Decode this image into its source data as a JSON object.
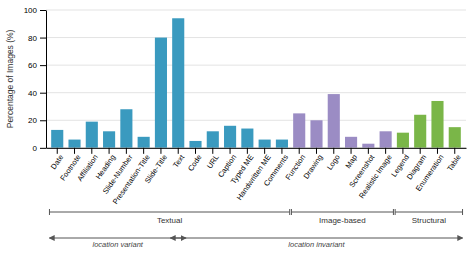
{
  "chart_data": {
    "type": "bar",
    "categories": [
      "Date",
      "Footnote",
      "Affiliation",
      "Heading",
      "Slide-Number",
      "Presentation-Title",
      "Slide-Title",
      "Text",
      "Code",
      "URL",
      "Caption",
      "Typed ME",
      "Handwritten ME",
      "Comments",
      "Function",
      "Drawing",
      "Logo",
      "Map",
      "Screenshot",
      "Realistic Image",
      "Legend",
      "Diagram",
      "Enumeration",
      "Table"
    ],
    "values": [
      13,
      6,
      19,
      12,
      28,
      8,
      80,
      94,
      5,
      12,
      16,
      14,
      6,
      6,
      25,
      20,
      39,
      8,
      3,
      12,
      11,
      24,
      34,
      15
    ],
    "colors": [
      "#3a9abf",
      "#3a9abf",
      "#3a9abf",
      "#3a9abf",
      "#3a9abf",
      "#3a9abf",
      "#3a9abf",
      "#3a9abf",
      "#3a9abf",
      "#3a9abf",
      "#3a9abf",
      "#3a9abf",
      "#3a9abf",
      "#3a9abf",
      "#9b8cc4",
      "#9b8cc4",
      "#9b8cc4",
      "#9b8cc4",
      "#9b8cc4",
      "#9b8cc4",
      "#7ab648",
      "#7ab648",
      "#7ab648",
      "#7ab648"
    ],
    "ylabel": "Percentage of Images (%)",
    "ylim": [
      0,
      100
    ],
    "yticks": [
      0,
      20,
      40,
      60,
      80,
      100
    ],
    "grid": true,
    "groups": [
      {
        "label": "Textual",
        "from": "Date",
        "to": "Comments"
      },
      {
        "label": "Image-based",
        "from": "Function",
        "to": "Realistic Image"
      },
      {
        "label": "Structural",
        "from": "Legend",
        "to": "Table"
      }
    ],
    "annotations": [
      {
        "text": "location variant",
        "from": "Date",
        "to": "Text"
      },
      {
        "text": "location invariant",
        "from": "Text",
        "to": "Table"
      }
    ]
  }
}
